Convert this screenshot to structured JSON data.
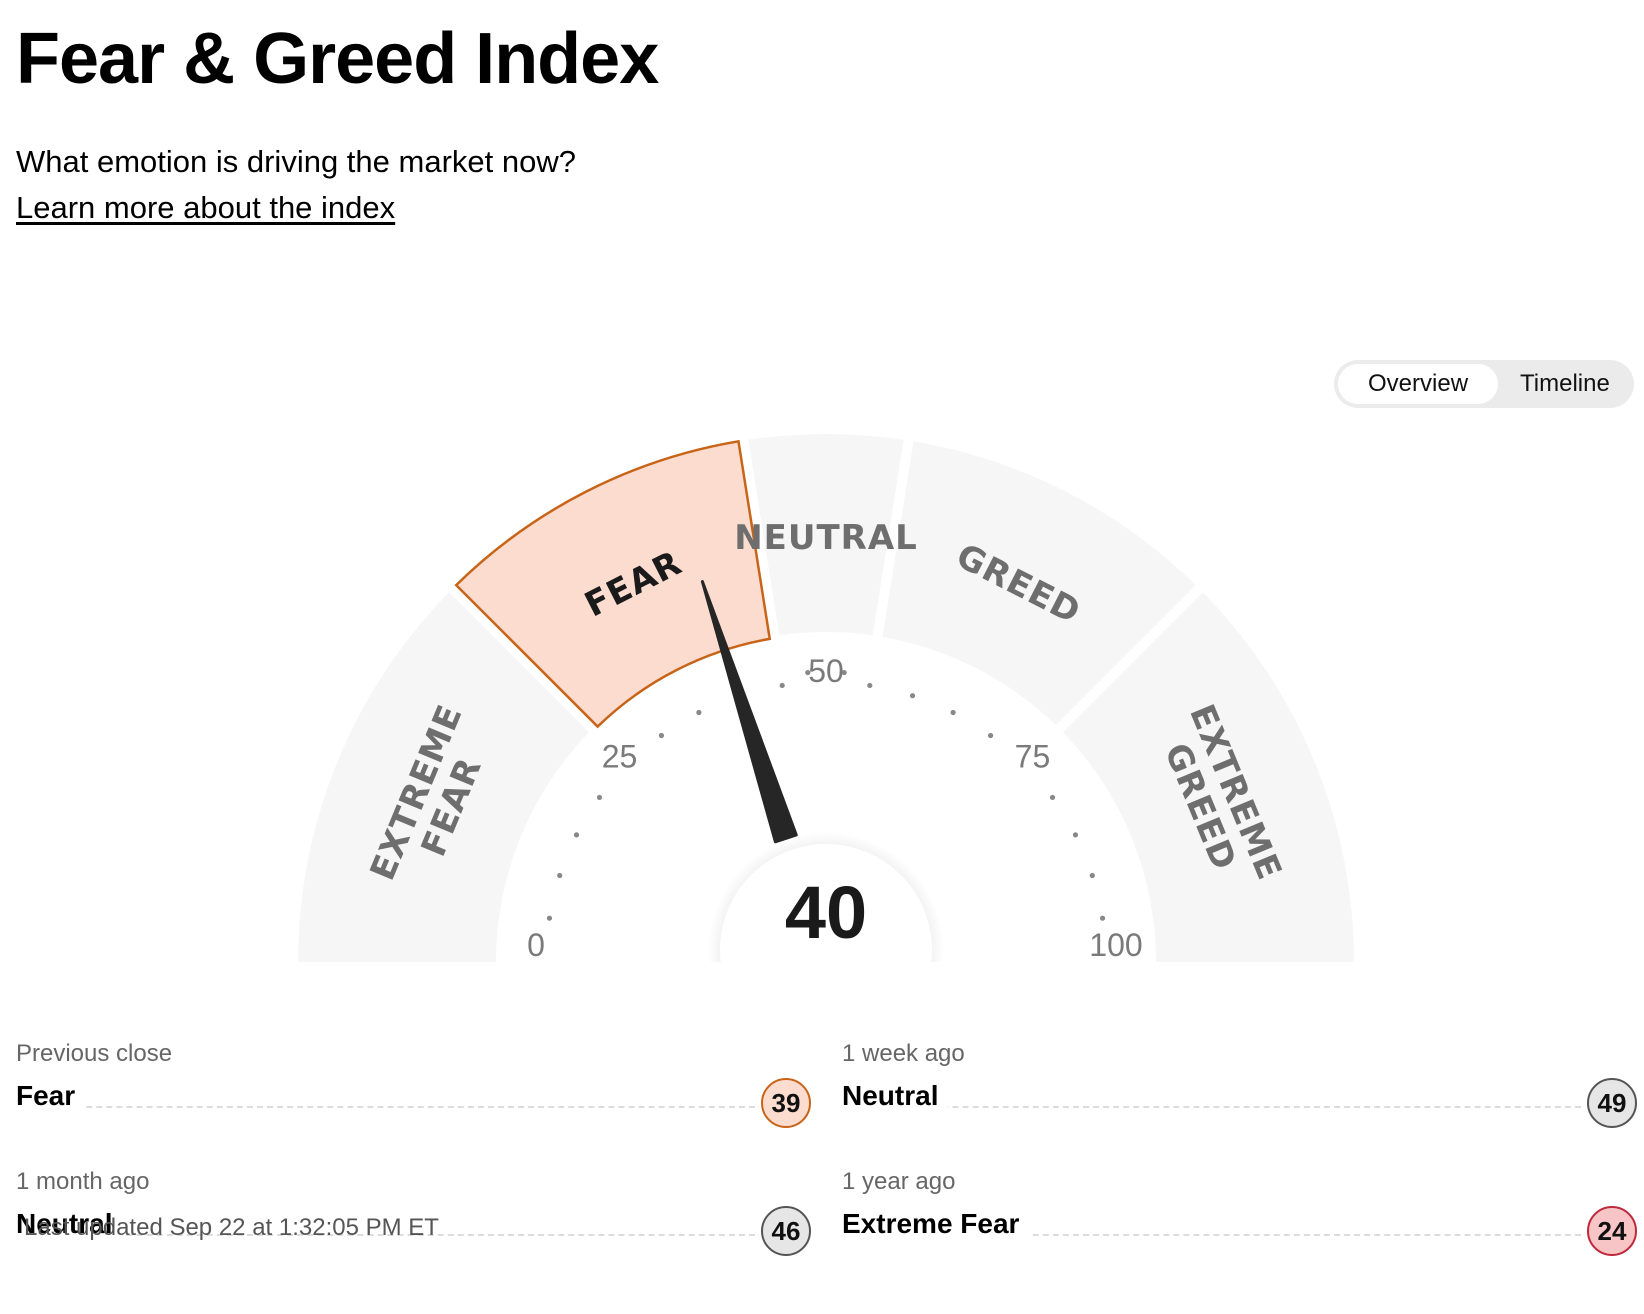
{
  "header": {
    "title": "Fear & Greed Index",
    "subtitle": "What emotion is driving the market now?",
    "learn_more": "Learn more about the index"
  },
  "toggle": {
    "options": [
      "Overview",
      "Timeline"
    ],
    "active": "Overview"
  },
  "gauge": {
    "value": 40,
    "min": 0,
    "max": 100,
    "ticks": [
      "0",
      "25",
      "50",
      "75",
      "100"
    ],
    "segments": [
      {
        "lines": [
          "EXTREME",
          "FEAR"
        ],
        "from": 0,
        "to": 25
      },
      {
        "lines": [
          "FEAR"
        ],
        "from": 25,
        "to": 45
      },
      {
        "lines": [
          "NEUTRAL"
        ],
        "from": 45,
        "to": 55
      },
      {
        "lines": [
          "GREED"
        ],
        "from": 55,
        "to": 75
      },
      {
        "lines": [
          "EXTREME",
          "GREED"
        ],
        "from": 75,
        "to": 100
      }
    ],
    "active_segment": 1,
    "colors": {
      "track": "#f6f6f6",
      "active_fill": "#fddcd0",
      "active_stroke": "#c86418",
      "needle": "#262626",
      "dot": "#888888"
    }
  },
  "history": [
    {
      "label": "Previous close",
      "rating": "Fear",
      "value": "39",
      "tone": "fear"
    },
    {
      "label": "1 week ago",
      "rating": "Neutral",
      "value": "49",
      "tone": "neutral"
    },
    {
      "label": "1 month ago",
      "rating": "Neutral",
      "value": "46",
      "tone": "neutral"
    },
    {
      "label": "1 year ago",
      "rating": "Extreme Fear",
      "value": "24",
      "tone": "xfear"
    }
  ],
  "last_updated": "Last updated Sep 22 at 1:32:05 PM ET"
}
